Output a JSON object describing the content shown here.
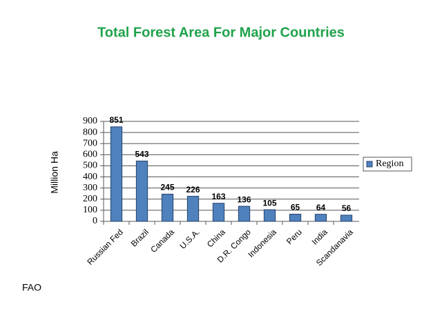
{
  "chart_data": {
    "type": "bar",
    "title": "Total Forest Area For Major Countries",
    "y_label": "Million Ha",
    "categories": [
      "Russian Fed",
      "Brazil",
      "Canada",
      "U.S.A.",
      "China",
      "D.R. Congo",
      "Indonesia",
      "Peru",
      "India",
      "Scandanavia"
    ],
    "series": [
      {
        "name": "Region",
        "color": "#4f81bd",
        "values": [
          851,
          543,
          245,
          226,
          163,
          136,
          105,
          65,
          64,
          56
        ]
      }
    ],
    "ylim": [
      0,
      900
    ],
    "yticks": [
      0,
      100,
      200,
      300,
      400,
      500,
      600,
      700,
      800,
      900
    ],
    "grid": true,
    "legend": "right",
    "source": "FAO"
  }
}
